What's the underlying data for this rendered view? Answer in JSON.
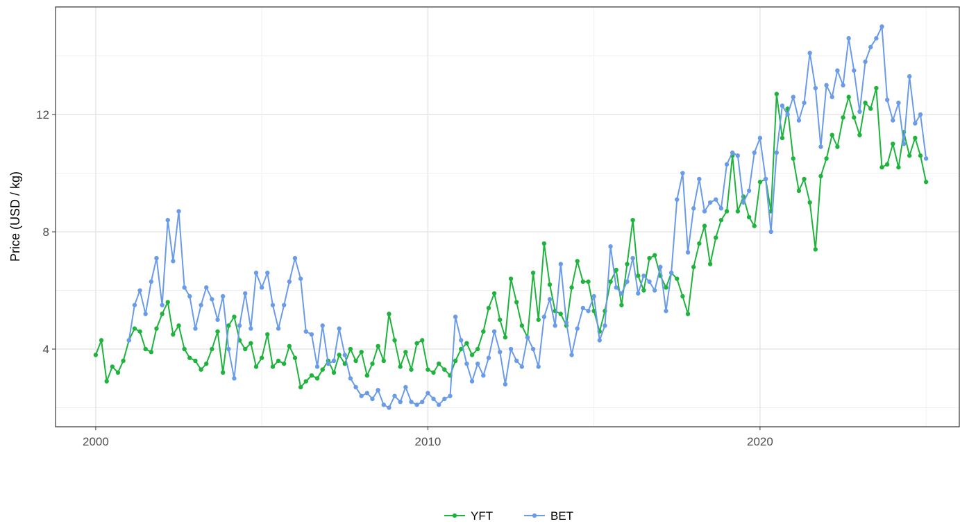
{
  "chart_data": {
    "type": "line",
    "y_label": "Price (USD / kg)",
    "xlim": [
      1998.79,
      2026.0
    ],
    "ylim": [
      1.35,
      15.67
    ],
    "xticks": [
      2000,
      2010,
      2020
    ],
    "yticks": [
      4,
      8,
      12
    ],
    "grid": true,
    "minor_grid": true,
    "legend": "bottom",
    "x": [
      2000,
      2000.17,
      2000.33,
      2000.5,
      2000.67,
      2000.83,
      2001,
      2001.17,
      2001.33,
      2001.5,
      2001.67,
      2001.83,
      2002,
      2002.17,
      2002.33,
      2002.5,
      2002.67,
      2002.83,
      2003,
      2003.17,
      2003.33,
      2003.5,
      2003.67,
      2003.83,
      2004,
      2004.17,
      2004.33,
      2004.5,
      2004.67,
      2004.83,
      2005,
      2005.17,
      2005.33,
      2005.5,
      2005.67,
      2005.83,
      2006,
      2006.17,
      2006.33,
      2006.5,
      2006.67,
      2006.83,
      2007,
      2007.17,
      2007.33,
      2007.5,
      2007.67,
      2007.83,
      2008,
      2008.17,
      2008.33,
      2008.5,
      2008.67,
      2008.83,
      2009,
      2009.17,
      2009.33,
      2009.5,
      2009.67,
      2009.83,
      2010,
      2010.17,
      2010.33,
      2010.5,
      2010.67,
      2010.83,
      2011,
      2011.17,
      2011.33,
      2011.5,
      2011.67,
      2011.83,
      2012,
      2012.17,
      2012.33,
      2012.5,
      2012.67,
      2012.83,
      2013,
      2013.17,
      2013.33,
      2013.5,
      2013.67,
      2013.83,
      2014,
      2014.17,
      2014.33,
      2014.5,
      2014.67,
      2014.83,
      2015,
      2015.17,
      2015.33,
      2015.5,
      2015.67,
      2015.83,
      2016,
      2016.17,
      2016.33,
      2016.5,
      2016.67,
      2016.83,
      2017,
      2017.17,
      2017.33,
      2017.5,
      2017.67,
      2017.83,
      2018,
      2018.17,
      2018.33,
      2018.5,
      2018.67,
      2018.83,
      2019,
      2019.17,
      2019.33,
      2019.5,
      2019.67,
      2019.83,
      2020,
      2020.17,
      2020.33,
      2020.5,
      2020.67,
      2020.83,
      2021,
      2021.17,
      2021.33,
      2021.5,
      2021.67,
      2021.83,
      2022,
      2022.17,
      2022.33,
      2022.5,
      2022.67,
      2022.83,
      2023,
      2023.17,
      2023.33,
      2023.5,
      2023.67,
      2023.83,
      2024,
      2024.17,
      2024.33,
      2024.5,
      2024.67,
      2024.83,
      2025
    ],
    "series": [
      {
        "name": "YFT",
        "color": "#1db33c",
        "values": [
          3.8,
          4.3,
          2.9,
          3.4,
          3.2,
          3.6,
          4.3,
          4.7,
          4.6,
          4.0,
          3.9,
          4.7,
          5.2,
          5.6,
          4.5,
          4.8,
          4.0,
          3.7,
          3.6,
          3.3,
          3.5,
          4.0,
          4.6,
          3.2,
          4.8,
          5.1,
          4.3,
          4.0,
          4.2,
          3.4,
          3.7,
          4.5,
          3.4,
          3.6,
          3.5,
          4.1,
          3.7,
          2.7,
          2.9,
          3.1,
          3.0,
          3.3,
          3.6,
          3.2,
          3.8,
          3.5,
          4.0,
          3.6,
          3.9,
          3.1,
          3.5,
          4.1,
          3.6,
          5.2,
          4.3,
          3.4,
          3.9,
          3.3,
          4.2,
          4.3,
          3.3,
          3.2,
          3.5,
          3.3,
          3.1,
          3.6,
          4.0,
          4.2,
          3.8,
          4.0,
          4.6,
          5.4,
          5.9,
          5.0,
          4.4,
          6.4,
          5.6,
          4.8,
          4.4,
          6.6,
          5.0,
          7.6,
          6.2,
          5.3,
          5.2,
          4.8,
          6.1,
          7.0,
          6.3,
          6.3,
          5.3,
          4.6,
          5.3,
          6.3,
          6.7,
          5.5,
          6.9,
          8.4,
          6.5,
          6.0,
          7.1,
          7.2,
          6.5,
          6.1,
          6.6,
          6.4,
          5.8,
          5.2,
          6.8,
          7.6,
          8.2,
          6.9,
          7.8,
          8.4,
          8.7,
          10.6,
          8.7,
          9.2,
          8.5,
          8.2,
          9.7,
          9.8,
          8.7,
          12.7,
          11.2,
          12.2,
          10.5,
          9.4,
          9.8,
          9.0,
          7.4,
          9.9,
          10.5,
          11.3,
          10.9,
          11.9,
          12.6,
          11.9,
          11.3,
          12.4,
          12.2,
          12.9,
          10.2,
          10.3,
          11.0,
          10.2,
          11.4,
          10.6,
          11.2,
          10.6,
          9.7
        ]
      },
      {
        "name": "BET",
        "color": "#6a9be8",
        "values": [
          null,
          null,
          null,
          null,
          null,
          null,
          4.3,
          5.5,
          6.0,
          5.2,
          6.3,
          7.1,
          5.5,
          8.4,
          7.0,
          8.7,
          6.1,
          5.8,
          4.7,
          5.5,
          6.1,
          5.7,
          5.0,
          5.8,
          4.0,
          3.0,
          4.8,
          5.9,
          4.7,
          6.6,
          6.1,
          6.6,
          5.5,
          4.7,
          5.5,
          6.3,
          7.1,
          6.4,
          4.6,
          4.5,
          3.4,
          4.8,
          3.5,
          3.6,
          4.7,
          3.8,
          3.0,
          2.7,
          2.4,
          2.5,
          2.3,
          2.6,
          2.1,
          2.0,
          2.4,
          2.2,
          2.7,
          2.2,
          2.1,
          2.2,
          2.5,
          2.3,
          2.1,
          2.3,
          2.4,
          5.1,
          4.3,
          3.5,
          2.9,
          3.5,
          3.1,
          3.7,
          4.6,
          3.9,
          2.8,
          4.0,
          3.6,
          3.4,
          4.4,
          4.0,
          3.4,
          5.1,
          5.7,
          4.8,
          6.9,
          4.9,
          3.8,
          4.7,
          5.4,
          5.3,
          5.8,
          4.3,
          4.8,
          7.5,
          6.1,
          5.9,
          6.3,
          7.1,
          5.9,
          6.5,
          6.3,
          6.0,
          6.8,
          5.3,
          6.6,
          9.1,
          10.0,
          7.3,
          8.8,
          9.8,
          8.7,
          9.0,
          9.1,
          8.8,
          10.3,
          10.7,
          10.6,
          9.0,
          9.4,
          10.7,
          11.2,
          9.8,
          8.0,
          10.7,
          12.3,
          12.0,
          12.6,
          11.8,
          12.4,
          14.1,
          12.9,
          10.9,
          13.0,
          12.6,
          13.5,
          13.0,
          14.6,
          13.5,
          12.1,
          13.8,
          14.3,
          14.6,
          15.0,
          12.5,
          11.8,
          12.4,
          11.0,
          13.3,
          11.7,
          12.0,
          10.5
        ]
      }
    ]
  }
}
